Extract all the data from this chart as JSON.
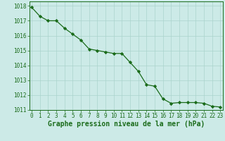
{
  "x": [
    0,
    1,
    2,
    3,
    4,
    5,
    6,
    7,
    8,
    9,
    10,
    11,
    12,
    13,
    14,
    15,
    16,
    17,
    18,
    19,
    20,
    21,
    22,
    23
  ],
  "y": [
    1017.9,
    1017.3,
    1017.0,
    1017.0,
    1016.5,
    1016.1,
    1015.7,
    1015.1,
    1015.0,
    1014.9,
    1014.8,
    1014.8,
    1014.2,
    1013.6,
    1012.7,
    1012.6,
    1011.75,
    1011.45,
    1011.5,
    1011.5,
    1011.5,
    1011.45,
    1011.25,
    1011.2
  ],
  "line_color": "#1a6b1a",
  "marker": "D",
  "marker_size": 2.2,
  "bg_color": "#cceae7",
  "grid_color": "#aad4cc",
  "ylim": [
    1011.0,
    1018.3
  ],
  "yticks": [
    1011,
    1012,
    1013,
    1014,
    1015,
    1016,
    1017,
    1018
  ],
  "xticks": [
    0,
    1,
    2,
    3,
    4,
    5,
    6,
    7,
    8,
    9,
    10,
    11,
    12,
    13,
    14,
    15,
    16,
    17,
    18,
    19,
    20,
    21,
    22,
    23
  ],
  "xlim": [
    -0.3,
    23.3
  ],
  "xlabel": "Graphe pression niveau de la mer (hPa)",
  "title_color": "#1a6b1a",
  "tick_color": "#1a6b1a",
  "tick_fontsize": 5.5,
  "title_fontsize": 7.0,
  "linewidth": 0.9
}
